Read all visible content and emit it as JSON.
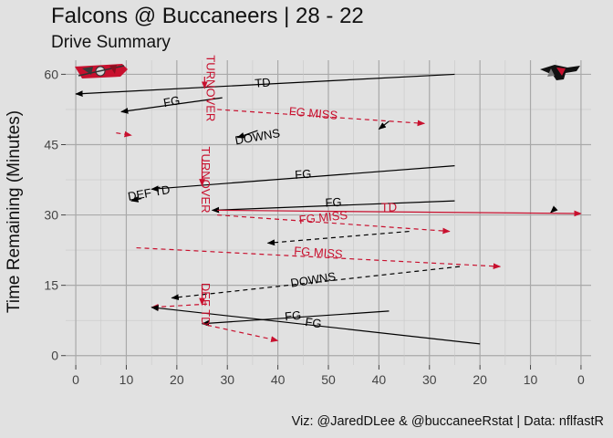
{
  "title": "Falcons @ Buccaneers | 28 - 22",
  "subtitle": "Drive Summary",
  "caption": "Viz: @JaredDLee & @buccaneeRstat | Data: nflfastR",
  "colors": {
    "away": "#000000",
    "home": "#c8102e",
    "panel": "#e1e1e1",
    "grid": "#a9a9a9"
  },
  "logos": {
    "left": "buccaneers-logo",
    "right": "falcons-logo"
  },
  "chart_data": {
    "type": "line",
    "ylabel": "Time Remaining (Minutes)",
    "x_ticks": [
      "0",
      "10",
      "20",
      "30",
      "40",
      "50",
      "40",
      "30",
      "20",
      "10",
      "0"
    ],
    "x_tick_values": [
      0,
      10,
      20,
      30,
      40,
      50,
      60,
      70,
      80,
      90,
      100
    ],
    "y_ticks": [
      "0",
      "15",
      "30",
      "45",
      "60"
    ],
    "y_tick_values": [
      0,
      15,
      30,
      45,
      60
    ],
    "xlim": [
      -2,
      102
    ],
    "ylim": [
      -2,
      63
    ],
    "series": [
      {
        "name": "ATL",
        "color": "#000000"
      },
      {
        "name": "TB",
        "color": "#c8102e"
      }
    ],
    "drives": [
      {
        "team": "ATL",
        "x1": 75,
        "y1": 60,
        "x2": 0,
        "y2": 55.8,
        "style": "solid",
        "label": "TD",
        "lx": 37,
        "ly": 58,
        "rot": -4
      },
      {
        "team": "ATL",
        "x1": 29,
        "y1": 55,
        "x2": 9,
        "y2": 52,
        "style": "solid",
        "label": "FG",
        "lx": 19,
        "ly": 54,
        "rot": -10
      },
      {
        "team": "TB",
        "x1": 28,
        "y1": 52.5,
        "x2": 69,
        "y2": 49.5,
        "style": "dashed",
        "label": "FG MISS",
        "lx": 47,
        "ly": 51.5,
        "rot": 5
      },
      {
        "team": "TB",
        "x1": 8,
        "y1": 47.5,
        "x2": 11,
        "y2": 47,
        "style": "dashed",
        "label": "",
        "lx": 0,
        "ly": 0,
        "rot": 0
      },
      {
        "team": "ATL",
        "x1": 62,
        "y1": 50,
        "x2": 60,
        "y2": 48.3,
        "style": "solid",
        "label": "",
        "lx": 0,
        "ly": 0,
        "rot": 0
      },
      {
        "team": "ATL",
        "x1": 36,
        "y1": 48,
        "x2": 32,
        "y2": 46.5,
        "style": "solid",
        "label": "DOWNS",
        "lx": 36,
        "ly": 46.5,
        "rot": -10
      },
      {
        "team": "ATL",
        "x1": 75,
        "y1": 40.5,
        "x2": 15,
        "y2": 35.5,
        "style": "solid",
        "label": "FG",
        "lx": 45,
        "ly": 38.5,
        "rot": -4
      },
      {
        "team": "ATL",
        "x1": 75,
        "y1": 33,
        "x2": 27,
        "y2": 31,
        "style": "solid",
        "label": "FG",
        "lx": 51,
        "ly": 32.5,
        "rot": -3
      },
      {
        "team": "ATL",
        "x1": 95,
        "y1": 31.5,
        "x2": 94,
        "y2": 30.5,
        "style": "solid",
        "label": "",
        "lx": 0,
        "ly": 0,
        "rot": 0
      },
      {
        "team": "TB",
        "x1": 28,
        "y1": 31,
        "x2": 100,
        "y2": 30.3,
        "style": "solid",
        "label": "TD",
        "lx": 62,
        "ly": 31.5,
        "rot": 0
      },
      {
        "team": "TB",
        "x1": 28,
        "y1": 30,
        "x2": 74,
        "y2": 26.5,
        "style": "dashed",
        "label": "FG MISS",
        "lx": 49,
        "ly": 29.3,
        "rot": -6
      },
      {
        "team": "ATL",
        "x1": 66,
        "y1": 26.5,
        "x2": 38,
        "y2": 24,
        "style": "dashed",
        "label": "",
        "lx": 0,
        "ly": 0,
        "rot": 0
      },
      {
        "team": "TB",
        "x1": 12,
        "y1": 23,
        "x2": 84,
        "y2": 19,
        "style": "dashed",
        "label": "FG MISS",
        "lx": 48,
        "ly": 21.8,
        "rot": 4
      },
      {
        "team": "ATL",
        "x1": 76,
        "y1": 19,
        "x2": 19,
        "y2": 12.3,
        "style": "dashed",
        "label": "DOWNS",
        "lx": 47,
        "ly": 16,
        "rot": -9
      },
      {
        "team": "TB",
        "x1": 26,
        "y1": 11,
        "x2": 15,
        "y2": 10.3,
        "style": "dashed",
        "label": "",
        "lx": 0,
        "ly": 0,
        "rot": 0
      },
      {
        "team": "ATL",
        "x1": 80,
        "y1": 2.5,
        "x2": 15,
        "y2": 10.3,
        "style": "solid",
        "label": "FG",
        "lx": 47,
        "ly": 6.8,
        "rot": 8
      },
      {
        "team": "ATL",
        "x1": 62,
        "y1": 9.5,
        "x2": 25,
        "y2": 6.8,
        "style": "solid",
        "label": "FG",
        "lx": 43,
        "ly": 8.3,
        "rot": -6
      },
      {
        "team": "TB",
        "x1": 26,
        "y1": 6.5,
        "x2": 40,
        "y2": 3.2,
        "style": "dashed",
        "label": "",
        "lx": 0,
        "ly": 0,
        "rot": 0
      },
      {
        "team": "TB",
        "x1": 25.5,
        "y1": 59.5,
        "x2": 25.5,
        "y2": 57,
        "style": "solid",
        "label": "TURNOVER",
        "lx": 26.5,
        "ly": 57,
        "rot": 90
      },
      {
        "team": "TB",
        "x1": 25,
        "y1": 42,
        "x2": 25,
        "y2": 36.2,
        "style": "solid",
        "label": "TURNOVER",
        "lx": 25.5,
        "ly": 37.5,
        "rot": 90
      },
      {
        "team": "TB",
        "x1": 25,
        "y1": 15,
        "x2": 25,
        "y2": 10.8,
        "style": "solid",
        "label": "DEF TD",
        "lx": 25.5,
        "ly": 11,
        "rot": 90
      },
      {
        "team": "ATL",
        "x1": 13,
        "y1": 33.5,
        "x2": 11,
        "y2": 33,
        "style": "solid",
        "label": "DEF TD",
        "lx": 14.5,
        "ly": 34.5,
        "rot": -10
      }
    ]
  }
}
